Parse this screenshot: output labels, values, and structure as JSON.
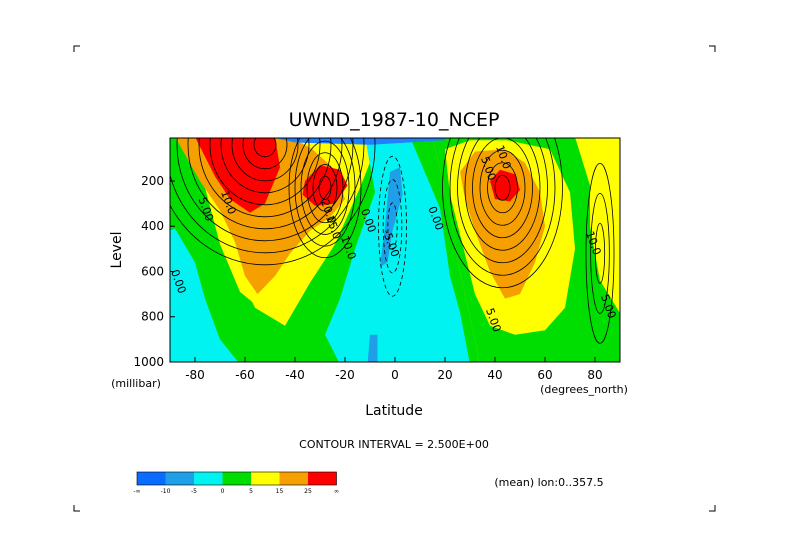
{
  "chart_data": {
    "type": "heatmap",
    "title": "UWND_1987-10_NCEP",
    "xlabel": "Latitude",
    "xunit": "(degrees_north)",
    "ylabel": "Level",
    "yunit": "(millibar)",
    "xlim": [
      -90,
      90
    ],
    "ylim": [
      1000,
      10
    ],
    "x_ticks": [
      -80,
      -60,
      -40,
      -20,
      0,
      20,
      40,
      60,
      80
    ],
    "y_ticks": [
      200,
      400,
      600,
      800,
      1000
    ],
    "footer": "CONTOUR INTERVAL = 2.500E+00",
    "region_note": "(mean) lon:0..357.5",
    "colorbar": {
      "labels": [
        "-∞",
        "-10",
        "-5",
        "0",
        "5",
        "15",
        "25",
        "∞"
      ],
      "colors": [
        "#0a6bff",
        "#1e9fe8",
        "#00f3f0",
        "#00dd00",
        "#ffff00",
        "#f5a000",
        "#ff0000"
      ]
    },
    "contour_labels": [
      {
        "text": "5.00",
        "lat": -77,
        "lev": 330
      },
      {
        "text": "10.0",
        "lat": -68,
        "lev": 300
      },
      {
        "text": "20.0",
        "lat": -28,
        "lev": 340
      },
      {
        "text": "15.0",
        "lat": -26,
        "lev": 410
      },
      {
        "text": "10.0",
        "lat": -20,
        "lev": 500
      },
      {
        "text": "0.00",
        "lat": -12,
        "lev": 380
      },
      {
        "text": "-5.00",
        "lat": -3,
        "lev": 480
      },
      {
        "text": "0.00",
        "lat": 15,
        "lev": 370
      },
      {
        "text": "10.0",
        "lat": 42,
        "lev": 100
      },
      {
        "text": "5.00",
        "lat": 36,
        "lev": 150
      },
      {
        "text": "5.00",
        "lat": 38,
        "lev": 820
      },
      {
        "text": "0.00",
        "lat": -88,
        "lev": 650
      },
      {
        "text": "10.0",
        "lat": 78,
        "lev": 480
      },
      {
        "text": "5.00",
        "lat": 84,
        "lev": 760
      }
    ],
    "features": [
      {
        "kind": "southern_subtropical_jet",
        "lat": -28,
        "lev": 200,
        "max": "> 25"
      },
      {
        "kind": "southern_polar_jet",
        "lat": -55,
        "lev": 50,
        "max": "> 25"
      },
      {
        "kind": "northern_subtropical_jet",
        "lat": 42,
        "lev": 200,
        "max": "> 25"
      },
      {
        "kind": "tropical_easterlies",
        "lat": 0,
        "lev": 400,
        "max": "< -5"
      }
    ]
  }
}
